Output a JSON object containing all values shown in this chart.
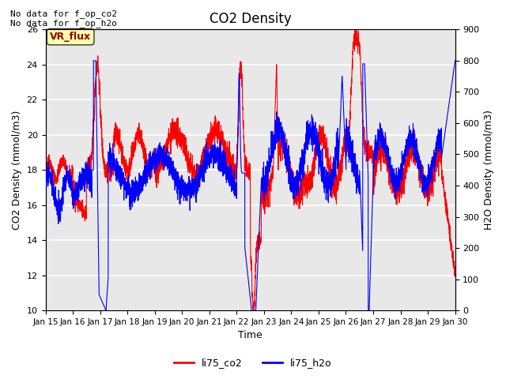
{
  "title": "CO2 Density",
  "xlabel": "Time",
  "ylabel_left": "CO2 Density (mmol/m3)",
  "ylabel_right": "H2O Density (mmol/m3)",
  "annotation_line1": "No data for f_op_co2",
  "annotation_line2": "No data for f_op_h2o",
  "legend_box_text": "VR_flux",
  "legend_box_facecolor": "#ffffaa",
  "legend_box_edgecolor": "#333333",
  "legend_box_textcolor": "#990000",
  "legend_entries": [
    "li75_co2",
    "li75_h2o"
  ],
  "line_colors": [
    "red",
    "blue"
  ],
  "ylim_left": [
    10,
    26
  ],
  "ylim_right": [
    0,
    900
  ],
  "yticks_left": [
    10,
    12,
    14,
    16,
    18,
    20,
    22,
    24,
    26
  ],
  "yticks_right": [
    0,
    100,
    200,
    300,
    400,
    500,
    600,
    700,
    800,
    900
  ],
  "bg_color": "#e8e8e8",
  "grid_color": "white",
  "title_fontsize": 12,
  "axis_fontsize": 9,
  "tick_fontsize": 8,
  "annot_fontsize": 8,
  "legend_fontsize": 9
}
